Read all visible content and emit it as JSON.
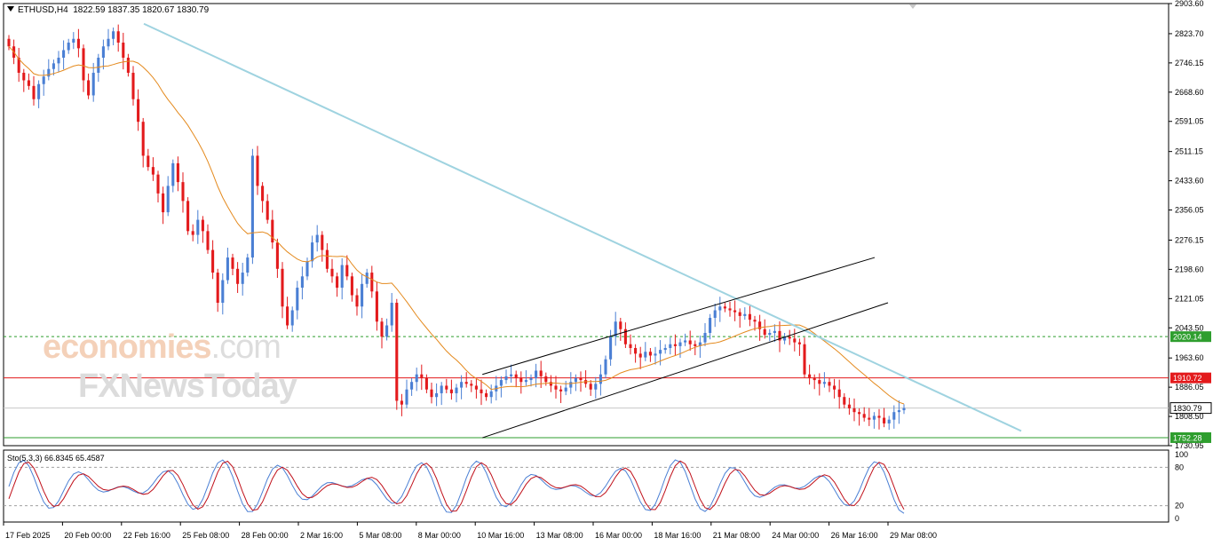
{
  "header": {
    "symbol": "ETHUSD,H4",
    "ohlc": "1822.59 1837.35 1820.67 1830.79"
  },
  "watermark": {
    "line1": "economies",
    "line1_suffix": ".com",
    "line2": "FXNewsToday"
  },
  "indicator": {
    "label": "Sto(5,3,3) 66.8345 65.4587"
  },
  "chart_data": {
    "type": "candlestick",
    "timeframe": "H4",
    "price_axis": {
      "ticks": [
        "2903.60",
        "2823.70",
        "2746.15",
        "2668.60",
        "2591.05",
        "2511.15",
        "2433.60",
        "2356.05",
        "2276.15",
        "2198.60",
        "2121.05",
        "2043.50",
        "1963.60",
        "1886.05",
        "1808.50",
        "1730.95"
      ],
      "range": [
        1730.95,
        2903.6
      ]
    },
    "time_axis": {
      "ticks": [
        "17 Feb 2025",
        "20 Feb 00:00",
        "22 Feb 16:00",
        "25 Feb 08:00",
        "28 Feb 00:00",
        "2 Mar 16:00",
        "5 Mar 08:00",
        "8 Mar 00:00",
        "10 Mar 16:00",
        "13 Mar 08:00",
        "16 Mar 00:00",
        "18 Mar 16:00",
        "21 Mar 08:00",
        "24 Mar 00:00",
        "26 Mar 16:00",
        "29 Mar 08:00"
      ]
    },
    "price_labels": [
      {
        "value": "2020.14",
        "color": "#2e9e2e",
        "style": "dashed"
      },
      {
        "value": "1910.72",
        "color": "#e31a1c",
        "style": "solid"
      },
      {
        "value": "1830.79",
        "color": "#ffffff",
        "style": "solid"
      },
      {
        "value": "1752.28",
        "color": "#2e9e2e",
        "style": "solid"
      }
    ],
    "series": [
      {
        "kind": "ohlc",
        "up_color": "#4a7fd4",
        "down_color": "#e31a1c",
        "closes": [
          2790,
          2760,
          2720,
          2700,
          2685,
          2650,
          2690,
          2710,
          2730,
          2745,
          2760,
          2780,
          2800,
          2810,
          2785,
          2700,
          2660,
          2720,
          2760,
          2790,
          2810,
          2830,
          2800,
          2760,
          2720,
          2650,
          2590,
          2500,
          2470,
          2450,
          2400,
          2350,
          2420,
          2480,
          2430,
          2380,
          2300,
          2290,
          2330,
          2300,
          2250,
          2190,
          2110,
          2170,
          2230,
          2200,
          2160,
          2190,
          2230,
          2500,
          2420,
          2380,
          2330,
          2270,
          2200,
          2100,
          2050,
          2090,
          2150,
          2180,
          2220,
          2270,
          2290,
          2250,
          2200,
          2180,
          2150,
          2210,
          2180,
          2130,
          2100,
          2160,
          2190,
          2140,
          2060,
          2020,
          2050,
          2110,
          1850,
          1840,
          1880,
          1900,
          1920,
          1910,
          1880,
          1860,
          1870,
          1890,
          1880,
          1870,
          1885,
          1900,
          1895,
          1890,
          1880,
          1870,
          1860,
          1875,
          1890,
          1905,
          1915,
          1920,
          1910,
          1900,
          1905,
          1910,
          1930,
          1915,
          1900,
          1890,
          1880,
          1875,
          1885,
          1900,
          1910,
          1905,
          1895,
          1880,
          1895,
          1920,
          1960,
          2020,
          2060,
          2040,
          2000,
          1990,
          1975,
          1965,
          1980,
          1970,
          1975,
          1985,
          1990,
          2000,
          1995,
          2005,
          2010,
          2000,
          1995,
          2005,
          2030,
          2070,
          2090,
          2100,
          2095,
          2090,
          2085,
          2075,
          2080,
          2065,
          2060,
          2040,
          2025,
          2030,
          2035,
          2010,
          2020,
          2015,
          2005,
          2000,
          1920,
          1910,
          1905,
          1895,
          1900,
          1890,
          1880,
          1860,
          1840,
          1830,
          1820,
          1815,
          1805,
          1800,
          1810,
          1805,
          1790,
          1800,
          1820,
          1825,
          1830.79
        ]
      },
      {
        "kind": "moving_average",
        "color": "#e48a1e"
      },
      {
        "kind": "trendline",
        "color": "#9fd3e0",
        "from": [
          "22 Feb 16:00",
          2850
        ],
        "to": [
          "29 Mar 08:00",
          1770
        ]
      },
      {
        "kind": "channel",
        "color": "#000000",
        "from": [
          "10 Mar 16:00",
          1752
        ],
        "to": [
          "26 Mar 16:00",
          2230
        ]
      },
      {
        "kind": "stochastic",
        "params": "5,3,3",
        "k_color": "#4a7fd4",
        "d_color": "#c0101a",
        "levels": [
          80,
          20
        ],
        "axis": [
          "100",
          "80",
          "20",
          "0"
        ]
      }
    ]
  }
}
